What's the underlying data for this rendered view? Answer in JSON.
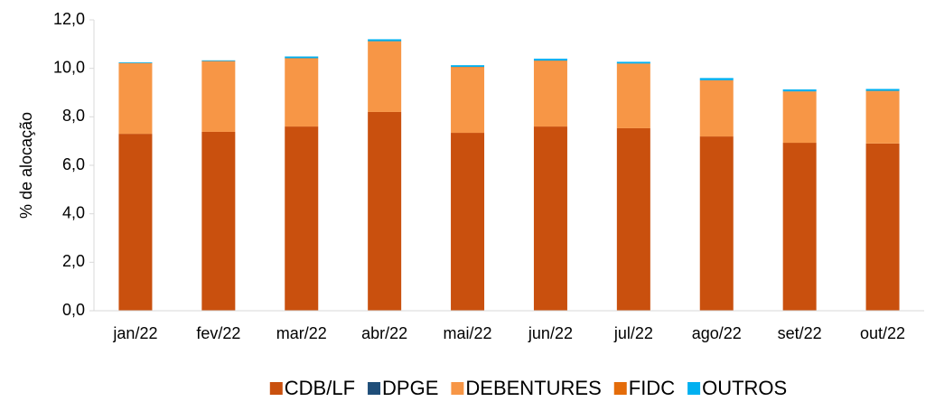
{
  "chart_data": {
    "type": "stacked-bar",
    "y_label": "% de alocação",
    "categories": [
      "jan/22",
      "fev/22",
      "mar/22",
      "abr/22",
      "mai/22",
      "jun/22",
      "jul/22",
      "ago/22",
      "set/22",
      "out/22"
    ],
    "series": [
      {
        "name": "CDB/LF",
        "color": "#c9500e",
        "values": [
          7.3,
          7.38,
          7.6,
          8.2,
          7.34,
          7.6,
          7.53,
          7.19,
          6.93,
          6.9
        ]
      },
      {
        "name": "DPGE",
        "color": "#1f4e79",
        "values": [
          0,
          0,
          0,
          0,
          0,
          0,
          0,
          0,
          0,
          0
        ]
      },
      {
        "name": "DEBENTURES",
        "color": "#f79646",
        "values": [
          2.9,
          2.9,
          2.8,
          2.9,
          2.7,
          2.7,
          2.65,
          2.3,
          2.1,
          2.15
        ]
      },
      {
        "name": "FIDC",
        "color": "#e46c0a",
        "values": [
          0.02,
          0.02,
          0.02,
          0.02,
          0.02,
          0.02,
          0.02,
          0.02,
          0.02,
          0.02
        ]
      },
      {
        "name": "OUTROS",
        "color": "#00b0f0",
        "values": [
          0.03,
          0.03,
          0.07,
          0.08,
          0.07,
          0.08,
          0.07,
          0.09,
          0.08,
          0.08
        ]
      }
    ],
    "ylim": [
      0,
      12
    ],
    "yticks": [
      {
        "value": 0,
        "label": "0,0"
      },
      {
        "value": 2,
        "label": "2,0"
      },
      {
        "value": 4,
        "label": "4,0"
      },
      {
        "value": 6,
        "label": "6,0"
      },
      {
        "value": 8,
        "label": "8,0"
      },
      {
        "value": 10,
        "label": "10,0"
      },
      {
        "value": 12,
        "label": "12,0"
      }
    ],
    "grid": false,
    "legend": "bottom"
  }
}
